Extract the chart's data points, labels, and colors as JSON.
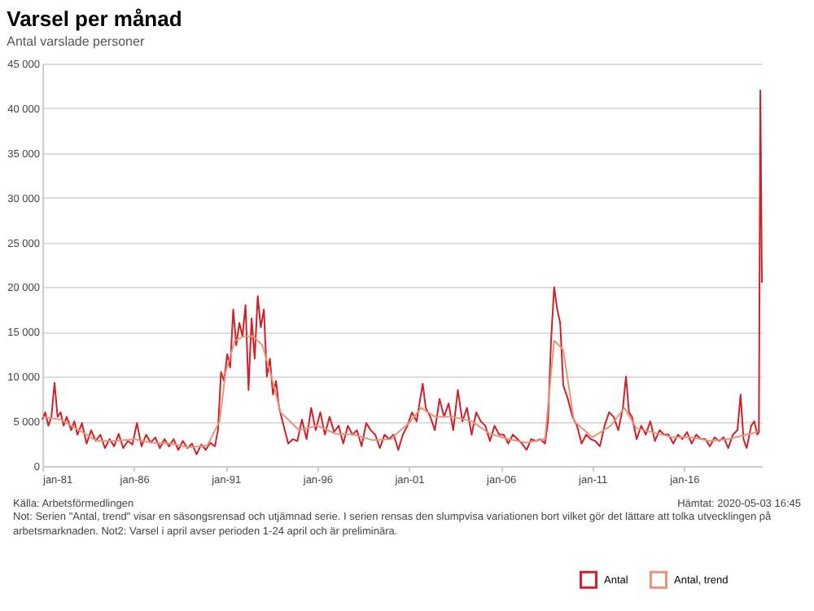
{
  "chart_data": {
    "type": "line",
    "title": "Varsel per månad",
    "subtitle": "Antal varslade personer",
    "x": [
      "1981-01",
      "1981-03",
      "1981-05",
      "1981-07",
      "1981-09",
      "1981-11",
      "1982-01",
      "1982-03",
      "1982-05",
      "1982-08",
      "1982-10",
      "1982-12",
      "1983-03",
      "1983-06",
      "1983-09",
      "1983-12",
      "1984-03",
      "1984-06",
      "1984-09",
      "1984-12",
      "1985-03",
      "1985-06",
      "1985-09",
      "1985-12",
      "1986-03",
      "1986-06",
      "1986-09",
      "1986-12",
      "1987-03",
      "1987-06",
      "1987-09",
      "1987-12",
      "1988-03",
      "1988-06",
      "1988-09",
      "1988-12",
      "1989-03",
      "1989-06",
      "1989-09",
      "1989-12",
      "1990-03",
      "1990-06",
      "1990-08",
      "1990-10",
      "1990-12",
      "1991-02",
      "1991-04",
      "1991-06",
      "1991-08",
      "1991-10",
      "1991-12",
      "1992-02",
      "1992-04",
      "1992-06",
      "1992-08",
      "1992-10",
      "1992-12",
      "1993-02",
      "1993-04",
      "1993-06",
      "1993-08",
      "1993-10",
      "1993-12",
      "1994-03",
      "1994-06",
      "1994-09",
      "1994-12",
      "1995-03",
      "1995-06",
      "1995-09",
      "1995-12",
      "1996-03",
      "1996-06",
      "1996-09",
      "1996-12",
      "1997-03",
      "1997-06",
      "1997-09",
      "1997-12",
      "1998-03",
      "1998-06",
      "1998-09",
      "1998-12",
      "1999-03",
      "1999-06",
      "1999-09",
      "1999-12",
      "2000-03",
      "2000-06",
      "2000-09",
      "2000-12",
      "2001-03",
      "2001-06",
      "2001-10",
      "2001-12",
      "2002-03",
      "2002-06",
      "2002-09",
      "2002-12",
      "2003-03",
      "2003-06",
      "2003-09",
      "2003-12",
      "2004-03",
      "2004-06",
      "2004-09",
      "2004-12",
      "2005-03",
      "2005-06",
      "2005-09",
      "2005-12",
      "2006-03",
      "2006-06",
      "2006-09",
      "2006-12",
      "2007-03",
      "2007-06",
      "2007-09",
      "2007-12",
      "2008-03",
      "2008-06",
      "2008-08",
      "2008-10",
      "2008-12",
      "2009-02",
      "2009-04",
      "2009-06",
      "2009-09",
      "2009-12",
      "2010-03",
      "2010-06",
      "2010-09",
      "2010-12",
      "2011-03",
      "2011-06",
      "2011-09",
      "2011-12",
      "2012-03",
      "2012-06",
      "2012-09",
      "2012-11",
      "2013-01",
      "2013-03",
      "2013-06",
      "2013-09",
      "2013-12",
      "2014-03",
      "2014-06",
      "2014-09",
      "2014-12",
      "2015-03",
      "2015-06",
      "2015-09",
      "2015-12",
      "2016-03",
      "2016-06",
      "2016-09",
      "2016-12",
      "2017-03",
      "2017-06",
      "2017-09",
      "2017-12",
      "2018-03",
      "2018-06",
      "2018-09",
      "2018-12",
      "2019-02",
      "2019-04",
      "2019-06",
      "2019-09",
      "2019-11",
      "2020-01",
      "2020-02",
      "2020-03",
      "2020-04"
    ],
    "series": [
      {
        "name": "Antal",
        "color": "#d0202a",
        "values": [
          5200,
          6000,
          4500,
          5500,
          9300,
          5500,
          6000,
          4500,
          5500,
          4000,
          5000,
          3500,
          4800,
          2500,
          4000,
          2800,
          3500,
          2000,
          3000,
          2200,
          3600,
          2000,
          2800,
          2400,
          4800,
          2200,
          3500,
          2600,
          3200,
          2000,
          3000,
          2200,
          3000,
          1800,
          2800,
          2000,
          2500,
          1300,
          2400,
          1800,
          2600,
          2200,
          4000,
          10500,
          9500,
          12500,
          11000,
          17500,
          13500,
          16000,
          14500,
          18000,
          8500,
          16500,
          12000,
          19000,
          15500,
          17500,
          10000,
          12000,
          8000,
          9500,
          6500,
          4500,
          2500,
          3000,
          2800,
          5200,
          3000,
          6500,
          4000,
          6000,
          3500,
          5500,
          3800,
          4500,
          2500,
          4500,
          3500,
          4000,
          2200,
          4800,
          4000,
          3500,
          2000,
          3500,
          3000,
          3500,
          1800,
          3500,
          4500,
          6000,
          5000,
          9200,
          6500,
          5500,
          4000,
          7500,
          5500,
          7000,
          4000,
          8500,
          5000,
          6500,
          3500,
          6000,
          5000,
          4500,
          2800,
          4500,
          3500,
          3500,
          2500,
          3500,
          3000,
          2500,
          1800,
          3000,
          2800,
          3000,
          2500,
          5000,
          14000,
          20000,
          17500,
          16000,
          9000,
          7500,
          5500,
          4500,
          2500,
          3500,
          3000,
          2800,
          2200,
          4500,
          6000,
          5500,
          4000,
          6500,
          10000,
          6000,
          5500,
          3000,
          4500,
          3500,
          5000,
          2800,
          4000,
          3500,
          3500,
          2500,
          3500,
          3000,
          3800,
          2500,
          3500,
          3000,
          3000,
          2200,
          3200,
          2800,
          3200,
          2000,
          3500,
          4000,
          8000,
          3000,
          2000,
          4500,
          5000,
          3500,
          3800,
          42000,
          20500
        ]
      },
      {
        "name": "Antal, trend",
        "color": "#e8967a",
        "x": [
          "1981-01",
          "1982-01",
          "1983-01",
          "1984-01",
          "1985-01",
          "1986-01",
          "1987-01",
          "1988-01",
          "1989-01",
          "1990-01",
          "1990-09",
          "1991-01",
          "1991-07",
          "1992-01",
          "1992-07",
          "1993-01",
          "1993-07",
          "1994-01",
          "1995-01",
          "1996-01",
          "1997-01",
          "1998-01",
          "1999-01",
          "2000-01",
          "2001-01",
          "2001-09",
          "2002-06",
          "2003-06",
          "2004-06",
          "2005-06",
          "2006-06",
          "2007-06",
          "2008-06",
          "2008-12",
          "2009-06",
          "2010-01",
          "2011-01",
          "2012-01",
          "2012-10",
          "2013-06",
          "2014-06",
          "2015-06",
          "2016-06",
          "2017-06",
          "2018-06",
          "2019-06",
          "2020-01"
        ],
        "values": [
          5500,
          5200,
          4000,
          2800,
          2800,
          3000,
          2600,
          2500,
          2100,
          2300,
          5000,
          10500,
          14000,
          14500,
          14500,
          13500,
          10000,
          6000,
          4000,
          4500,
          3600,
          3500,
          2900,
          3000,
          4800,
          6500,
          5500,
          5500,
          5000,
          3600,
          3000,
          2600,
          3000,
          14000,
          13000,
          5000,
          3200,
          4500,
          6500,
          4200,
          3700,
          3200,
          3200,
          2800,
          3000,
          3500,
          3800
        ]
      }
    ],
    "xlim": [
      "1981-01",
      "2020-04"
    ],
    "xticks": [
      {
        "value": "1981-01",
        "label": "jan-81"
      },
      {
        "value": "1986-01",
        "label": "jan-86"
      },
      {
        "value": "1991-01",
        "label": "jan-91"
      },
      {
        "value": "1996-01",
        "label": "jan-96"
      },
      {
        "value": "2001-01",
        "label": "jan-01"
      },
      {
        "value": "2006-01",
        "label": "jan-06"
      },
      {
        "value": "2011-01",
        "label": "jan-11"
      },
      {
        "value": "2016-01",
        "label": "jan-16"
      }
    ],
    "ylim": [
      0,
      45000
    ],
    "yticks": [
      {
        "value": 0,
        "label": "0"
      },
      {
        "value": 5000,
        "label": "5 000"
      },
      {
        "value": 10000,
        "label": "10 000"
      },
      {
        "value": 15000,
        "label": "15 000"
      },
      {
        "value": 20000,
        "label": "20 000"
      },
      {
        "value": 25000,
        "label": "25 000"
      },
      {
        "value": 30000,
        "label": "30 000"
      },
      {
        "value": 35000,
        "label": "35 000"
      },
      {
        "value": 40000,
        "label": "40 000"
      },
      {
        "value": 45000,
        "label": "45 000"
      }
    ],
    "grid": "y",
    "legend": "bottom right",
    "marker": "none",
    "line_style": "solid",
    "annotations": [
      "Källa: Arbetsförmedlingen",
      "Hämtat: 2020-05-03 16:45",
      "Not: Serien \"Antal, trend\" visar en säsongsrensad och utjämnad serie. I serien rensas den slumpvisa variationen bort vilket gör det lättare att tolka utvecklingen på arbetsmarknaden. Not2: Varsel i april avser perioden 1-24 april och är preliminära."
    ]
  }
}
